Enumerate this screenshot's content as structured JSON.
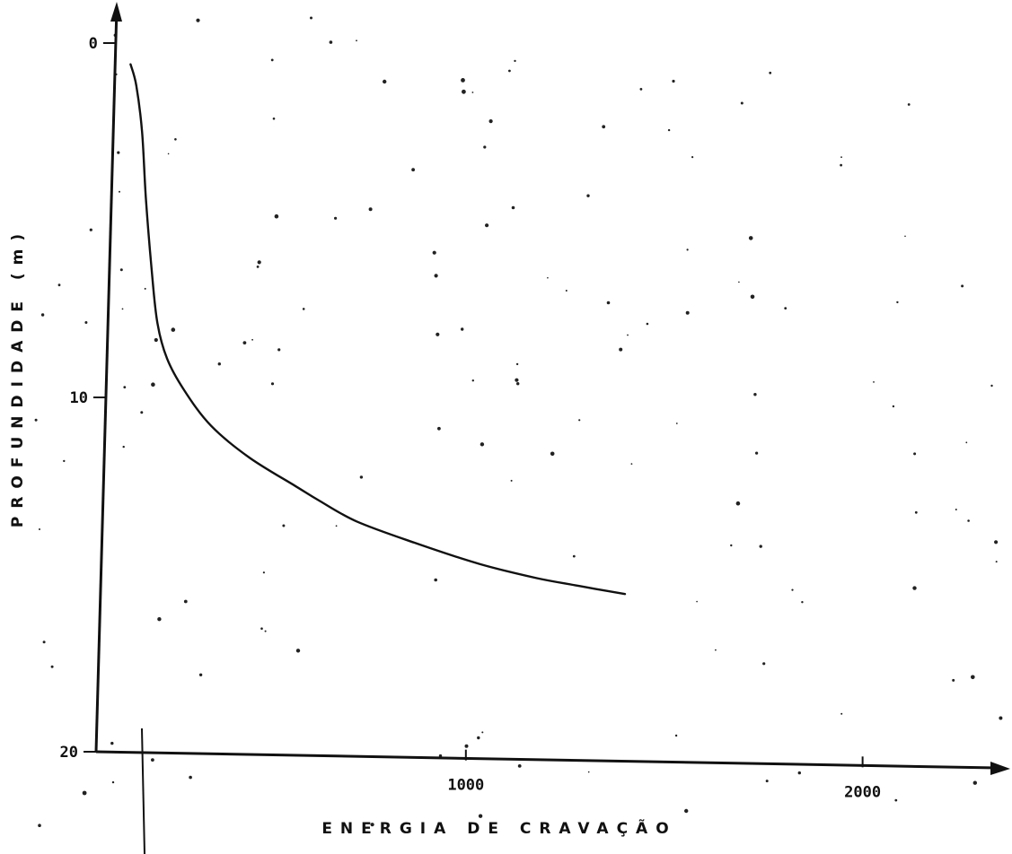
{
  "chart_data": {
    "type": "line",
    "title": "",
    "xlabel": "ENERGIA DE CRAVAÇÃO",
    "ylabel": "PROFUNDIDADE (m)",
    "xlim": [
      0,
      2350
    ],
    "ylim": [
      20,
      0
    ],
    "y_inverted": true,
    "grid": false,
    "x_ticks": [
      {
        "value": 1000,
        "label": "1000"
      },
      {
        "value": 2000,
        "label": "2000"
      }
    ],
    "y_ticks": [
      {
        "value": 0,
        "label": "0"
      },
      {
        "value": 10,
        "label": "10"
      },
      {
        "value": 20,
        "label": "20"
      }
    ],
    "series": [
      {
        "x": [
          90,
          105,
          120,
          130,
          145,
          160,
          185,
          230,
          300,
          400,
          520,
          580,
          680,
          830,
          1000,
          1150,
          1250,
          1300,
          1380
        ],
        "y": [
          0.6,
          1.2,
          2.5,
          4.4,
          6.4,
          7.9,
          8.9,
          9.8,
          10.8,
          11.7,
          12.5,
          12.9,
          13.5,
          14.1,
          14.7,
          15.1,
          15.3,
          15.4,
          15.55
        ]
      }
    ]
  }
}
